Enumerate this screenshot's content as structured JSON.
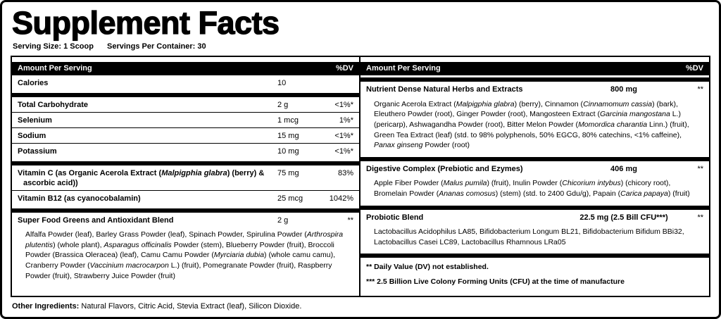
{
  "title": "Supplement Facts",
  "serving": {
    "size": "Serving Size: 1 Scoop",
    "per_container": "Servings Per Container: 30"
  },
  "left": {
    "header": {
      "amount": "Amount Per Serving",
      "dv": "%DV"
    },
    "calories": {
      "name": "Calories",
      "amount": "10",
      "dv": ""
    },
    "nutrients": [
      {
        "name": "Total Carbohydrate",
        "amount": "2 g",
        "dv": "<1%*"
      },
      {
        "name": "Selenium",
        "amount": "1 mcg",
        "dv": "1%*"
      },
      {
        "name": "Sodium",
        "amount": "15 mg",
        "dv": "<1%*"
      },
      {
        "name": "Potassium",
        "amount": "10 mg",
        "dv": "<1%*"
      }
    ],
    "vitamins": [
      {
        "name_rich": [
          {
            "t": "Vitamin C (as Organic Acerola Extract (",
            "i": false
          },
          {
            "t": "Malpigphia glabra",
            "i": true
          },
          {
            "t": ") (berry) & ascorbic acid))",
            "i": false
          }
        ],
        "amount": "75 mg",
        "dv": "83%"
      },
      {
        "name": "Vitamin B12 (as cyanocobalamin)",
        "amount": "25 mcg",
        "dv": "1042%"
      }
    ],
    "blend": {
      "name": "Super Food Greens and Antioxidant Blend",
      "amount": "2 g",
      "dv": "**",
      "description": [
        {
          "t": "Alfalfa Powder (leaf), Barley Grass Powder (leaf), Spinach Powder, Spirulina Powder (",
          "i": false
        },
        {
          "t": "Arthrospira plutentis",
          "i": true
        },
        {
          "t": ") (whole plant), ",
          "i": false
        },
        {
          "t": "Asparagus officinalis",
          "i": true
        },
        {
          "t": " Powder (stem), Blueberry Powder (fruit), Broccoli Powder (Brassica Oleracea) (leaf), Camu Camu Powder (",
          "i": false
        },
        {
          "t": "Myrciaria dubia",
          "i": true
        },
        {
          "t": ") (whole camu camu), Cranberry Powder (",
          "i": false
        },
        {
          "t": "Vaccinium macrocarpon",
          "i": true
        },
        {
          "t": " L.) (fruit), Pomegranate Powder (fruit), Raspberry Powder (fruit), Strawberry Juice Powder (fruit)",
          "i": false
        }
      ]
    }
  },
  "right": {
    "header": {
      "amount": "Amount Per Serving",
      "dv": "%DV"
    },
    "sections": [
      {
        "name": "Nutrient Dense Natural Herbs and Extracts",
        "amount": "800 mg",
        "dv": "**",
        "description": [
          {
            "t": "Organic Acerola Extract (",
            "i": false
          },
          {
            "t": "Malpigphia glabra",
            "i": true
          },
          {
            "t": ") (berry), Cinnamon (",
            "i": false
          },
          {
            "t": "Cinnamomum cassia",
            "i": true
          },
          {
            "t": ") (bark), Eleuthero Powder (root), Ginger Powder (root), Mangosteen Extract (",
            "i": false
          },
          {
            "t": "Garcinia mangostana",
            "i": true
          },
          {
            "t": " L.) (pericarp), Ashwagandha Powder (root), Bitter Melon Powder (",
            "i": false
          },
          {
            "t": "Momordica charantia",
            "i": true
          },
          {
            "t": " Linn.) (fruit), Green Tea Extract (leaf) (std. to 98% polyphenols, 50% EGCG, 80% catechins, <1% caffeine), ",
            "i": false
          },
          {
            "t": "Panax ginseng",
            "i": true
          },
          {
            "t": " Powder (root)",
            "i": false
          }
        ]
      },
      {
        "name": "Digestive Complex (Prebiotic and Ezymes)",
        "amount": "406 mg",
        "dv": "**",
        "description": [
          {
            "t": "Apple Fiber Powder (",
            "i": false
          },
          {
            "t": "Malus pumila",
            "i": true
          },
          {
            "t": ") (fruit), Inulin Powder (",
            "i": false
          },
          {
            "t": "Chicorium intybus",
            "i": true
          },
          {
            "t": ") (chicory root), Bromelain Powder (",
            "i": false
          },
          {
            "t": "Ananas comosus",
            "i": true
          },
          {
            "t": ") (stem) (std. to 2400 Gdu/g), Papain (",
            "i": false
          },
          {
            "t": "Carica papaya",
            "i": true
          },
          {
            "t": ") (fruit)",
            "i": false
          }
        ]
      },
      {
        "name": "Probiotic Blend",
        "amount": "22.5 mg (2.5 Bill CFU***)",
        "dv": "**",
        "description": [
          {
            "t": "Lactobacillus Acidophilus LA85, Bifidobacterium Longum BL21, Bifidobacterium Bifidum BBi32, Lactobacillus Casei LC89, Lactobacillus Rhamnous LRa05",
            "i": false
          }
        ]
      }
    ],
    "footnotes": [
      "** Daily Value (DV) not established.",
      "*** 2.5 Billion Live Colony Forming Units (CFU) at the time of manufacture"
    ]
  },
  "other_ingredients": {
    "label": "Other Ingredients:",
    "text": " Natural Flavors, Citric Acid, Stevia Extract (leaf), Silicon Dioxide."
  }
}
